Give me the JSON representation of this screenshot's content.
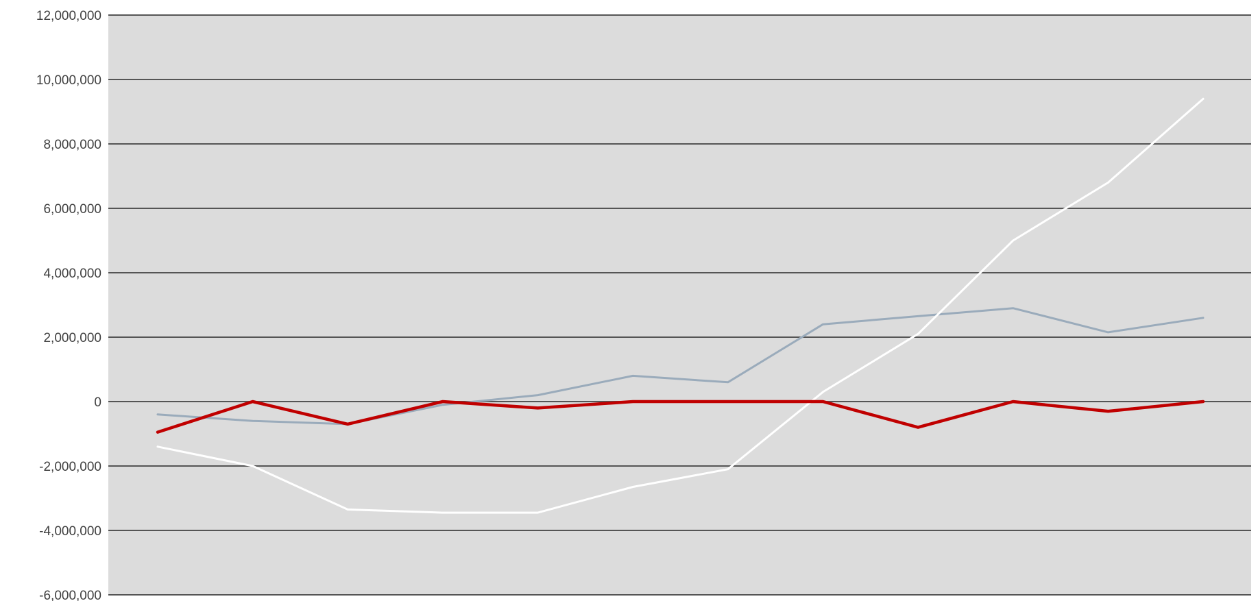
{
  "chart_data": {
    "type": "line",
    "title": "",
    "xlabel": "",
    "ylabel": "",
    "ylim": [
      -6000000,
      12000000
    ],
    "yticks": [
      -6000000,
      -4000000,
      -2000000,
      0,
      2000000,
      4000000,
      6000000,
      8000000,
      10000000,
      12000000
    ],
    "ytick_labels": [
      "-6,000,000",
      "-4,000,000",
      "-2,000,000",
      "0",
      "2,000,000",
      "4,000,000",
      "6,000,000",
      "8,000,000",
      "10,000,000",
      "12,000,000"
    ],
    "grid": true,
    "legend": "none",
    "x": [
      1,
      2,
      3,
      4,
      5,
      6,
      7,
      8,
      9,
      10,
      11,
      12
    ],
    "plot_background": "#dcdcdc",
    "series": [
      {
        "color": "#9aabbb",
        "values": [
          -400000,
          -600000,
          -700000,
          -100000,
          200000,
          800000,
          600000,
          2400000,
          2650000,
          2900000,
          2150000,
          2600000
        ]
      },
      {
        "color": "#ffffff",
        "values": [
          -1400000,
          -2000000,
          -3350000,
          -3450000,
          -3450000,
          -2650000,
          -2100000,
          300000,
          2100000,
          5000000,
          6800000,
          9400000
        ]
      },
      {
        "color": "#c00000",
        "values": [
          -950000,
          0,
          -700000,
          0,
          -200000,
          0,
          0,
          0,
          -800000,
          0,
          -300000,
          0
        ]
      }
    ]
  }
}
